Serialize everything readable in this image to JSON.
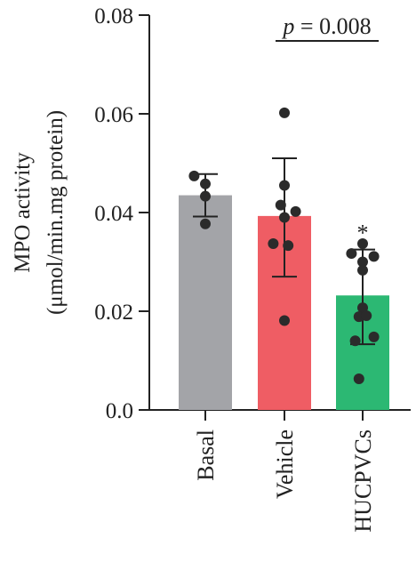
{
  "chart_data": {
    "type": "bar",
    "ylabel_line1": "MPO activity",
    "ylabel_line2": "(μmol/min.mg protein)",
    "ylim": [
      0,
      0.08
    ],
    "yticks": [
      "0.0",
      "0.02",
      "0.04",
      "0.06",
      "0.08"
    ],
    "ytick_values": [
      0,
      0.02,
      0.04,
      0.06,
      0.08
    ],
    "categories": [
      "Basal",
      "Vehicle",
      "HUCPVCs"
    ],
    "values": [
      0.0435,
      0.0393,
      0.0232
    ],
    "error": [
      [
        0.0392,
        0.0478
      ],
      [
        0.027,
        0.051
      ],
      [
        0.0133,
        0.0325
      ]
    ],
    "colors": [
      "#a3a4a8",
      "#ef5d64",
      "#2cb873"
    ],
    "points": [
      [
        {
          "dx": -0.45,
          "y": 0.0474
        },
        {
          "dx": 0.0,
          "y": 0.0458
        },
        {
          "dx": 0.0,
          "y": 0.0433
        },
        {
          "dx": 0.0,
          "y": 0.0377
        }
      ],
      [
        {
          "dx": 0.0,
          "y": 0.0602
        },
        {
          "dx": 0.0,
          "y": 0.0455
        },
        {
          "dx": -0.15,
          "y": 0.0415
        },
        {
          "dx": 0.0,
          "y": 0.039
        },
        {
          "dx": 0.45,
          "y": 0.0402
        },
        {
          "dx": -0.45,
          "y": 0.0337
        },
        {
          "dx": 0.15,
          "y": 0.0333
        },
        {
          "dx": 0.0,
          "y": 0.0181
        }
      ],
      [
        {
          "dx": -0.45,
          "y": 0.0317
        },
        {
          "dx": 0.0,
          "y": 0.0337
        },
        {
          "dx": 0.0,
          "y": 0.03
        },
        {
          "dx": 0.45,
          "y": 0.0311
        },
        {
          "dx": 0.0,
          "y": 0.0283
        },
        {
          "dx": 0.0,
          "y": 0.0207
        },
        {
          "dx": -0.15,
          "y": 0.0189
        },
        {
          "dx": 0.15,
          "y": 0.0191
        },
        {
          "dx": 0.45,
          "y": 0.0148
        },
        {
          "dx": -0.3,
          "y": 0.014
        },
        {
          "dx": -0.15,
          "y": 0.0063
        }
      ]
    ],
    "significance": {
      "text": "p = 0.008",
      "p_letter": "p",
      "p_rest": " = 0.008",
      "from": 1,
      "to": 2
    },
    "annotation": "*",
    "annotation_index": 2
  }
}
